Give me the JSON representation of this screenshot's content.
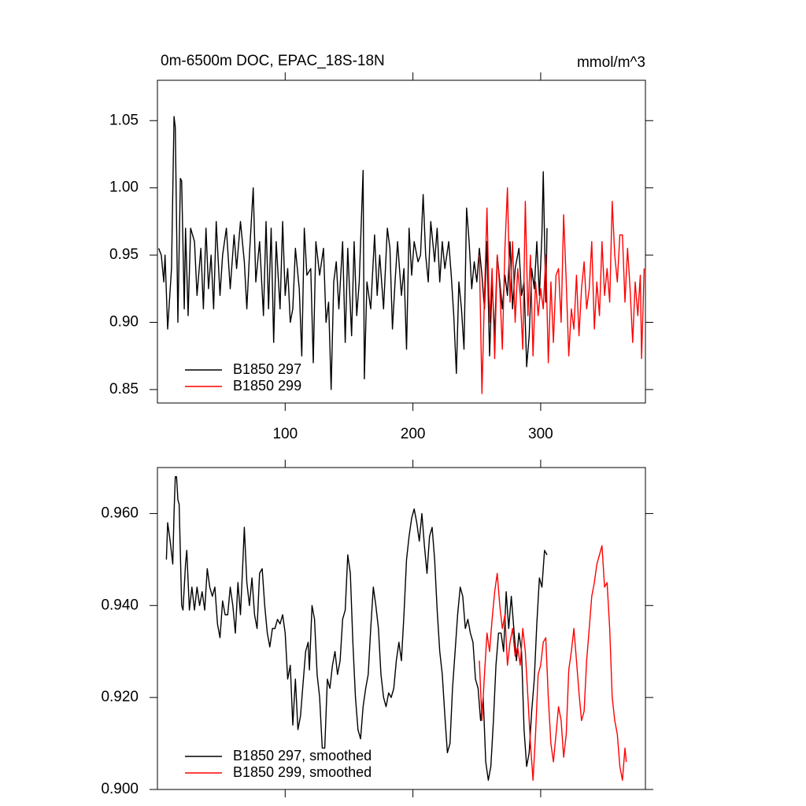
{
  "chart_data": [
    {
      "type": "line",
      "title": "0m-6500m DOC, EPAC_18S-18N",
      "units": "mmol/m^3",
      "xlim": [
        0,
        382
      ],
      "ylim": [
        0.84,
        1.08
      ],
      "xticks": [
        100,
        200,
        300
      ],
      "xtick_labels": true,
      "yticks": [
        0.85,
        {
          "value": 0.9,
          "label": "0.90"
        },
        0.95,
        {
          "value": 1.0,
          "label": "1.00"
        },
        1.05
      ],
      "legend": "lower left",
      "series": [
        {
          "name": "B1850 297",
          "color": "#000000",
          "x": [
            1,
            3,
            5,
            6,
            8,
            11,
            13,
            14,
            16,
            18,
            19,
            21,
            22,
            24,
            26,
            29,
            31,
            34,
            36,
            38,
            40,
            42,
            44,
            46,
            49,
            51,
            54,
            57,
            60,
            62,
            65,
            68,
            70,
            72,
            75,
            77,
            80,
            83,
            85,
            87,
            89,
            91,
            93,
            96,
            98,
            100,
            102,
            104,
            106,
            108,
            111,
            113,
            115,
            117,
            120,
            122,
            124,
            127,
            130,
            132,
            134,
            136,
            138,
            140,
            142,
            145,
            147,
            149,
            152,
            154,
            156,
            158,
            161,
            162,
            164,
            167,
            170,
            172,
            174,
            177,
            180,
            182,
            184,
            186,
            188,
            191,
            193,
            195,
            197,
            199,
            201,
            204,
            206,
            208,
            210,
            212,
            214,
            217,
            219,
            221,
            223,
            225,
            228,
            230,
            232,
            234,
            236,
            238,
            240,
            242,
            244,
            246,
            248,
            250,
            252,
            254,
            256,
            258,
            260,
            262,
            264,
            266,
            268,
            270,
            272,
            274,
            276,
            278,
            280,
            283,
            285,
            287,
            289,
            291,
            293,
            295,
            297,
            299,
            301,
            302,
            304,
            305
          ],
          "values": [
            0.955,
            0.95,
            0.93,
            0.95,
            0.895,
            0.94,
            1.053,
            1.045,
            0.9,
            1.007,
            1.005,
            0.91,
            0.97,
            0.905,
            0.97,
            0.96,
            0.92,
            0.955,
            0.91,
            0.97,
            0.925,
            0.95,
            0.91,
            0.975,
            0.92,
            0.95,
            0.97,
            0.925,
            0.965,
            0.94,
            0.975,
            0.945,
            0.91,
            0.95,
            1.0,
            0.93,
            0.96,
            0.905,
            0.975,
            0.91,
            0.97,
            0.885,
            0.96,
            0.91,
            0.975,
            0.92,
            0.94,
            0.9,
            0.91,
            0.955,
            0.925,
            0.875,
            0.97,
            0.935,
            0.94,
            0.87,
            0.96,
            0.935,
            0.955,
            0.9,
            0.915,
            0.85,
            0.93,
            0.945,
            0.91,
            0.96,
            0.885,
            0.955,
            0.89,
            0.96,
            0.905,
            0.93,
            1.013,
            0.858,
            0.93,
            0.91,
            0.965,
            0.92,
            0.95,
            0.91,
            0.97,
            0.955,
            0.895,
            0.93,
            0.96,
            0.92,
            0.94,
            0.88,
            0.97,
            0.935,
            0.96,
            0.945,
            0.95,
            0.995,
            0.95,
            0.93,
            0.975,
            0.945,
            0.97,
            0.93,
            0.96,
            0.94,
            0.96,
            0.935,
            0.905,
            0.862,
            0.93,
            0.91,
            0.88,
            0.985,
            0.96,
            0.925,
            0.945,
            0.93,
            0.955,
            0.935,
            0.91,
            0.96,
            0.875,
            0.93,
            0.89,
            0.95,
            0.93,
            0.91,
            0.935,
            0.92,
            0.96,
            0.91,
            0.94,
            0.955,
            0.92,
            0.93,
            0.867,
            0.89,
            0.94,
            0.925,
            0.96,
            0.92,
            0.965,
            1.012,
            0.915,
            0.97
          ]
        },
        {
          "name": "B1850 299",
          "color": "#ff0000",
          "x": [
            252,
            254,
            256,
            258,
            260,
            262,
            264,
            266,
            268,
            270,
            272,
            274,
            276,
            278,
            280,
            282,
            284,
            286,
            288,
            290,
            292,
            294,
            296,
            298,
            300,
            302,
            304,
            306,
            308,
            310,
            312,
            314,
            316,
            318,
            320,
            322,
            324,
            326,
            328,
            330,
            332,
            334,
            336,
            338,
            340,
            342,
            344,
            346,
            348,
            350,
            352,
            354,
            356,
            358,
            360,
            362,
            364,
            366,
            368,
            370,
            372,
            374,
            376,
            378,
            379,
            381
          ],
          "values": [
            0.95,
            0.847,
            0.92,
            0.985,
            0.9,
            0.94,
            0.873,
            0.95,
            0.925,
            0.88,
            0.955,
            1.0,
            0.915,
            0.96,
            0.9,
            0.94,
            0.92,
            0.88,
            0.99,
            0.905,
            0.95,
            0.875,
            0.93,
            0.905,
            0.925,
            0.91,
            0.95,
            0.87,
            0.93,
            0.885,
            0.935,
            0.94,
            0.9,
            0.98,
            0.93,
            0.875,
            0.91,
            0.895,
            0.935,
            0.89,
            0.925,
            0.945,
            0.91,
            0.925,
            0.96,
            0.895,
            0.93,
            0.905,
            0.96,
            0.92,
            0.94,
            0.915,
            0.99,
            0.95,
            0.93,
            0.965,
            0.965,
            0.915,
            0.955,
            0.925,
            0.885,
            0.93,
            0.905,
            0.935,
            0.873,
            0.94
          ]
        }
      ]
    },
    {
      "type": "line",
      "xlim": [
        0,
        382
      ],
      "ylim": [
        0.9,
        0.97
      ],
      "xticks": [
        100,
        200,
        300
      ],
      "xtick_labels": false,
      "yticks": [
        {
          "value": 0.9,
          "label": "0.900"
        },
        {
          "value": 0.92,
          "label": "0.920"
        },
        {
          "value": 0.94,
          "label": "0.940"
        },
        {
          "value": 0.96,
          "label": "0.960"
        }
      ],
      "legend": "lower left",
      "series": [
        {
          "name": "B1850 297, smoothed",
          "color": "#000000",
          "x": [
            7,
            8,
            10,
            12,
            13,
            14,
            15,
            16,
            17,
            19,
            20,
            22,
            23,
            25,
            27,
            29,
            31,
            33,
            35,
            37,
            39,
            41,
            43,
            45,
            47,
            49,
            51,
            53,
            55,
            57,
            59,
            61,
            63,
            65,
            67,
            68,
            70,
            72,
            74,
            76,
            78,
            80,
            82,
            84,
            86,
            88,
            90,
            92,
            94,
            96,
            98,
            100,
            102,
            104,
            106,
            108,
            110,
            112,
            114,
            116,
            118,
            119,
            121,
            123,
            125,
            127,
            129,
            131,
            133,
            135,
            137,
            139,
            141,
            143,
            145,
            147,
            149,
            151,
            153,
            155,
            157,
            159,
            161,
            163,
            165,
            167,
            169,
            171,
            173,
            175,
            177,
            179,
            181,
            183,
            185,
            187,
            189,
            191,
            193,
            195,
            197,
            199,
            201,
            203,
            205,
            207,
            209,
            211,
            213,
            215,
            217,
            219,
            221,
            223,
            225,
            227,
            229,
            231,
            233,
            235,
            237,
            239,
            241,
            243,
            245,
            247,
            249,
            251,
            253,
            255,
            257,
            259,
            261,
            263,
            265,
            267,
            269,
            271,
            273,
            275,
            277,
            279,
            281,
            283,
            285,
            287,
            289,
            291,
            293,
            295,
            297,
            299,
            301,
            303,
            305
          ],
          "values": [
            0.95,
            0.958,
            0.954,
            0.949,
            0.96,
            0.968,
            0.968,
            0.963,
            0.962,
            0.94,
            0.939,
            0.949,
            0.952,
            0.939,
            0.944,
            0.939,
            0.944,
            0.94,
            0.943,
            0.939,
            0.948,
            0.944,
            0.942,
            0.944,
            0.936,
            0.933,
            0.941,
            0.938,
            0.938,
            0.944,
            0.94,
            0.934,
            0.945,
            0.938,
            0.95,
            0.957,
            0.945,
            0.94,
            0.946,
            0.938,
            0.935,
            0.947,
            0.948,
            0.94,
            0.934,
            0.931,
            0.935,
            0.935,
            0.937,
            0.936,
            0.938,
            0.934,
            0.924,
            0.927,
            0.914,
            0.924,
            0.913,
            0.916,
            0.923,
            0.93,
            0.932,
            0.926,
            0.94,
            0.937,
            0.925,
            0.92,
            0.909,
            0.909,
            0.924,
            0.922,
            0.927,
            0.93,
            0.925,
            0.928,
            0.937,
            0.939,
            0.951,
            0.947,
            0.932,
            0.92,
            0.913,
            0.911,
            0.918,
            0.922,
            0.925,
            0.935,
            0.944,
            0.94,
            0.935,
            0.925,
            0.92,
            0.918,
            0.921,
            0.92,
            0.922,
            0.928,
            0.932,
            0.928,
            0.938,
            0.95,
            0.955,
            0.959,
            0.961,
            0.958,
            0.954,
            0.96,
            0.953,
            0.947,
            0.955,
            0.957,
            0.95,
            0.939,
            0.93,
            0.925,
            0.916,
            0.908,
            0.91,
            0.922,
            0.93,
            0.938,
            0.944,
            0.942,
            0.935,
            0.937,
            0.934,
            0.932,
            0.924,
            0.922,
            0.915,
            0.92,
            0.906,
            0.902,
            0.905,
            0.915,
            0.927,
            0.934,
            0.934,
            0.93,
            0.943,
            0.935,
            0.942,
            0.935,
            0.928,
            0.934,
            0.93,
            0.913,
            0.905,
            0.908,
            0.917,
            0.924,
            0.936,
            0.946,
            0.944,
            0.952,
            0.951
          ]
        },
        {
          "name": "B1850 299, smoothed",
          "color": "#ff0000",
          "x": [
            252,
            254,
            256,
            258,
            260,
            262,
            264,
            266,
            268,
            270,
            272,
            274,
            276,
            278,
            280,
            282,
            284,
            286,
            288,
            290,
            292,
            294,
            296,
            298,
            300,
            302,
            304,
            306,
            308,
            310,
            312,
            314,
            316,
            318,
            320,
            322,
            324,
            326,
            328,
            330,
            332,
            334,
            336,
            338,
            340,
            342,
            344,
            346,
            348,
            350,
            352,
            354,
            356,
            358,
            360,
            362,
            364,
            366,
            367
          ],
          "values": [
            0.928,
            0.915,
            0.925,
            0.934,
            0.93,
            0.937,
            0.943,
            0.947,
            0.94,
            0.935,
            0.938,
            0.927,
            0.932,
            0.935,
            0.929,
            0.931,
            0.927,
            0.935,
            0.93,
            0.92,
            0.91,
            0.902,
            0.912,
            0.925,
            0.927,
            0.932,
            0.933,
            0.92,
            0.91,
            0.906,
            0.912,
            0.918,
            0.915,
            0.907,
            0.912,
            0.926,
            0.93,
            0.935,
            0.928,
            0.921,
            0.915,
            0.917,
            0.928,
            0.935,
            0.942,
            0.945,
            0.949,
            0.951,
            0.953,
            0.944,
            0.945,
            0.935,
            0.92,
            0.915,
            0.912,
            0.905,
            0.902,
            0.909,
            0.906
          ]
        }
      ]
    }
  ]
}
